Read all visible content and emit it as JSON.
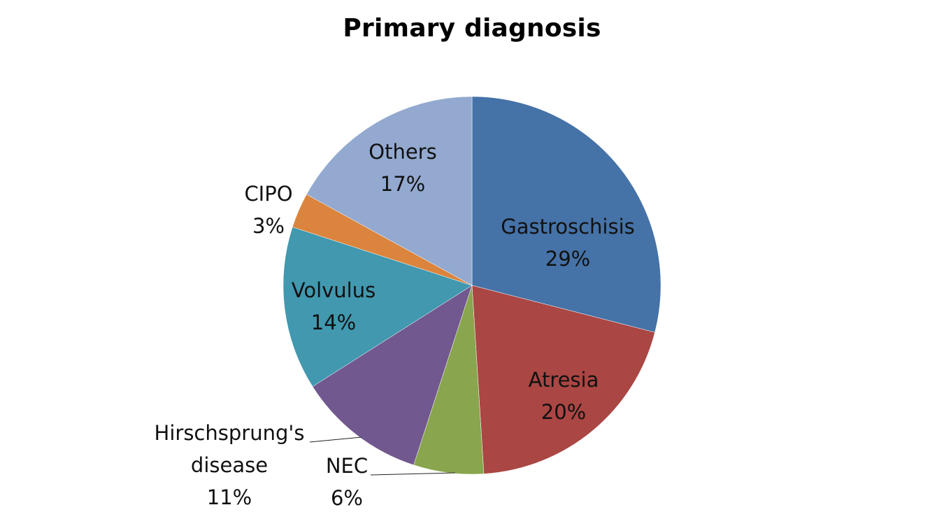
{
  "chart_data": {
    "type": "pie",
    "title": "Primary diagnosis",
    "start_angle_deg": 0,
    "direction": "clockwise",
    "slices": [
      {
        "name": "Gastroschisis",
        "value": 29,
        "percent_label": "29%",
        "color": "#4572A7"
      },
      {
        "name": "Atresia",
        "value": 20,
        "percent_label": "20%",
        "color": "#AA4643"
      },
      {
        "name": "NEC",
        "value": 6,
        "percent_label": "6%",
        "color": "#89A54E"
      },
      {
        "name": "Hirschsprung's disease",
        "value": 11,
        "percent_label": "11%",
        "color": "#71588F"
      },
      {
        "name": "Volvulus",
        "value": 14,
        "percent_label": "14%",
        "color": "#4198AF"
      },
      {
        "name": "CIPO",
        "value": 3,
        "percent_label": "3%",
        "color": "#DB843D"
      },
      {
        "name": "Others",
        "value": 17,
        "percent_label": "17%",
        "color": "#93A9CF"
      }
    ],
    "legend": "none",
    "label_position": "inside / outside with leader lines"
  }
}
